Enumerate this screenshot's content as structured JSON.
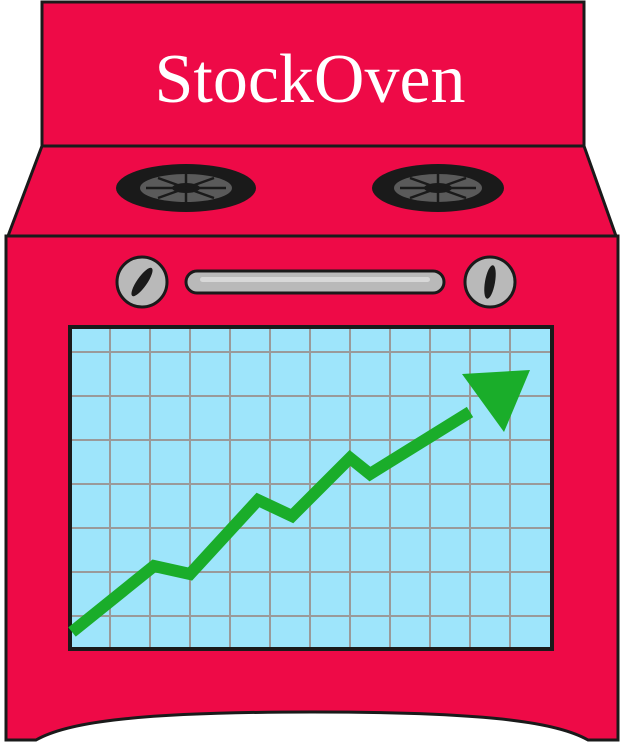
{
  "brand": {
    "name": "StockOven"
  },
  "colors": {
    "oven_body": "#ee0a47",
    "outline": "#1a1a1a",
    "screen_bg": "#9ee5fb",
    "grid_line": "#9a9a9a",
    "trend_arrow": "#1aad2a",
    "knob": "#b9b9b9",
    "burner": "#1a1a1a",
    "text": "#ffffff"
  },
  "icons": {
    "logo": "oven-chart-logo",
    "arrow": "trend-up-arrow-icon",
    "burner": "burner-icon",
    "knob": "knob-icon"
  }
}
